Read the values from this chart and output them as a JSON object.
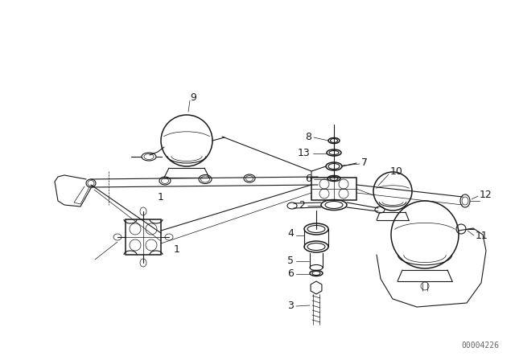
{
  "bg_color": "#ffffff",
  "line_color": "#1a1a1a",
  "figure_width": 6.4,
  "figure_height": 4.48,
  "dpi": 100,
  "watermark": "00004226",
  "watermark_color": "#666666",
  "watermark_fontsize": 7
}
